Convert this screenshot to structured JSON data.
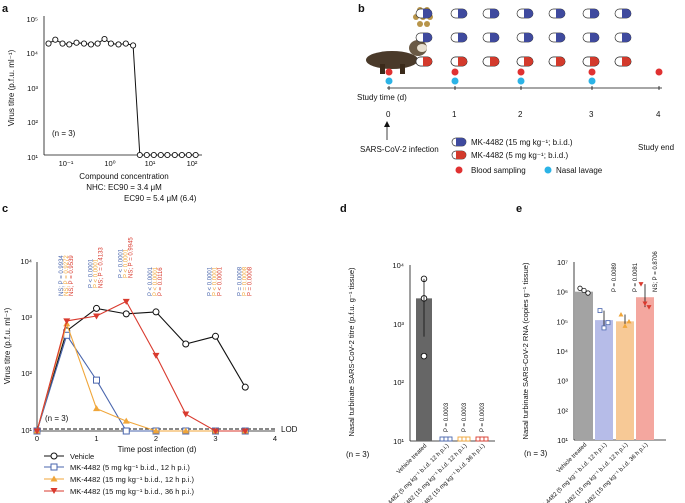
{
  "colors": {
    "vehicle": "#111111",
    "mk5": "#4a66ad",
    "mk15_12": "#f0a63a",
    "mk15_36": "#d93a2e",
    "blood": "#e03131",
    "lavage": "#2bb3e6",
    "mk15_bar": "#f7c996",
    "mk5_bar": "#b6bce8",
    "vehicle_bar_d": "#666666",
    "vehicle_bar_e": "#a3a3a3",
    "mk36_bar": "#f4a79f"
  },
  "panels": {
    "a": {
      "label": "a",
      "n": "(n = 3)",
      "ylabel": "Virus titre (p.f.u. ml⁻¹)",
      "xlabel": "Compound concentration",
      "ec90_nhc": "NHC: EC90 = 3.4 μM",
      "ec90_mk": "EC90 = 5.4 μM (6.4)",
      "xticks": [
        "10⁻¹",
        "10⁰",
        "10¹",
        "10²"
      ],
      "yticks": [
        "10¹",
        "10²",
        "10³",
        "10⁴",
        "10⁵"
      ]
    },
    "b": {
      "label": "b",
      "study_time": "Study time (d)",
      "days": [
        "0",
        "1",
        "2",
        "3",
        "4"
      ],
      "infection": "SARS-CoV-2 infection",
      "study_end": "Study end",
      "legend": [
        {
          "icon": "capsule-blue-icon",
          "text": "MK-4482 (15 mg kg⁻¹; b.i.d.)"
        },
        {
          "icon": "capsule-red-icon",
          "text": "MK-4482 (5 mg kg⁻¹; b.i.d.)"
        },
        {
          "icon": "blood-dot-icon",
          "text": "Blood sampling"
        },
        {
          "icon": "lavage-dot-icon",
          "text": "Nasal lavage"
        }
      ]
    },
    "c": {
      "label": "c",
      "n": "(n = 3)",
      "lod": "LOD",
      "ylabel": "Virus titre (p.f.u. ml⁻¹)",
      "xlabel": "Time post infection (d)",
      "xticks": [
        "0",
        "1",
        "2",
        "3",
        "4"
      ],
      "yticks": [
        "10¹",
        "10²",
        "10³",
        "10⁴"
      ],
      "pvals_blue": [
        "NS; P = 0.9934",
        "P < 0.0001",
        "P < 0.0001",
        "P < 0.0001",
        "P < 0.0001",
        "P = 0.0008"
      ],
      "pvals_orange": [
        "NS; P = 0.9272",
        "P < 0.0001",
        "P < 0.0001",
        "P < 0.0001",
        "P < 0.0001",
        "P = 0.0008"
      ],
      "pvals_red": [
        "NS; P = 0.9539",
        "NS; P = 0.4133",
        "NS; P = 0.9945",
        "P = 0.0116",
        "P < 0.0001",
        "P = 0.0008"
      ],
      "legend": [
        "Vehicle",
        "MK-4482 (5 mg kg⁻¹ b.i.d., 12 h p.i.)",
        "MK-4482 (15 mg kg⁻¹ b.i.d., 12 h p.i.)",
        "MK-4482 (15 mg kg⁻¹ b.i.d., 36 h p.i.)"
      ]
    },
    "d": {
      "label": "d",
      "n": "(n = 3)",
      "ylabel": "Nasal turbinate SARS-CoV-2 titre (p.f.u. g⁻¹ tissue)",
      "yticks": [
        "10¹",
        "10²",
        "10³",
        "10⁴"
      ],
      "categories": [
        "Vehicle treated",
        "MK-4482 (5 mg kg⁻¹ b.i.d. 12 h p.i.)",
        "MK-4482 (15 mg kg⁻¹ b.i.d. 12 h p.i.)",
        "MK-4482 (15 mg kg⁻¹ b.i.d. 36 h p.i.)"
      ],
      "pvals": [
        "P = 0.0003",
        "P = 0.0003",
        "P = 0.0003"
      ]
    },
    "e": {
      "label": "e",
      "n": "(n = 3)",
      "ylabel": "Nasal turbinate SARS-CoV-2 RNA (copies g⁻¹ tissue)",
      "yticks": [
        "10¹",
        "10²",
        "10³",
        "10⁴",
        "10⁵",
        "10⁶",
        "10⁷"
      ],
      "categories": [
        "Vehicle treated",
        "MK-4482 (5 mg kg⁻¹ b.i.d. 12 h p.i.)",
        "MK-4482 (15 mg kg⁻¹ b.i.d. 12 h p.i.)",
        "MK-4482 (15 mg kg⁻¹ b.i.d. 36 h p.i.)"
      ],
      "pvals": [
        "P = 0.0089",
        "P = 0.0081",
        "NS; P = 0.8706"
      ]
    }
  },
  "chart_data": [
    {
      "panel": "a",
      "type": "line",
      "x": [
        0.05,
        0.07,
        0.1,
        0.14,
        0.2,
        0.29,
        0.41,
        0.57,
        0.8,
        1.1,
        1.6,
        2.3,
        3.3,
        4.6,
        6.5,
        9.2,
        13,
        18,
        26,
        37,
        52,
        73
      ],
      "y": [
        17000,
        22000,
        17000,
        16000,
        18000,
        17000,
        16000,
        17000,
        23000,
        17000,
        16000,
        17000,
        15000,
        10,
        10,
        10,
        10,
        10,
        10,
        10,
        10,
        10
      ],
      "xlim": [
        0.04,
        100
      ],
      "ylim": [
        10,
        100000
      ],
      "xscale": "log",
      "yscale": "log"
    },
    {
      "panel": "c",
      "type": "line",
      "x": [
        0,
        0.5,
        1,
        1.5,
        2,
        2.5,
        3,
        3.5
      ],
      "xlim": [
        0,
        4
      ],
      "ylim": [
        10,
        10000
      ],
      "yscale": "log",
      "series": [
        {
          "name": "Vehicle",
          "values": [
            10,
            600,
            1500,
            1200,
            1300,
            350,
            480,
            60
          ]
        },
        {
          "name": "MK-4482 (5 mg kg⁻¹ b.i.d., 12 h p.i.)",
          "values": [
            10,
            500,
            80,
            10,
            10,
            10,
            10,
            10
          ]
        },
        {
          "name": "MK-4482 (15 mg kg⁻¹ b.i.d., 12 h p.i.)",
          "values": [
            10,
            800,
            25,
            15,
            10,
            10,
            10,
            10
          ]
        },
        {
          "name": "MK-4482 (15 mg kg⁻¹ b.i.d., 36 h p.i.)",
          "values": [
            10,
            900,
            1100,
            2000,
            220,
            20,
            10,
            10
          ]
        }
      ]
    },
    {
      "panel": "d",
      "type": "bar",
      "ylim": [
        10,
        10000
      ],
      "yscale": "log",
      "values": [
        2700,
        10,
        10,
        10
      ],
      "points": [
        [
          5800,
          2700,
          280
        ],
        [
          10,
          10,
          10
        ],
        [
          10,
          10,
          10
        ],
        [
          10,
          10,
          10
        ]
      ]
    },
    {
      "panel": "e",
      "type": "bar",
      "ylim": [
        10,
        10000000
      ],
      "yscale": "log",
      "values": [
        1000000,
        110000,
        100000,
        650000
      ],
      "points": [
        [
          1300000,
          1100000,
          900000
        ],
        [
          230000,
          60000,
          90000
        ],
        [
          170000,
          70000,
          100000
        ],
        [
          1800000,
          400000,
          300000
        ]
      ]
    }
  ]
}
